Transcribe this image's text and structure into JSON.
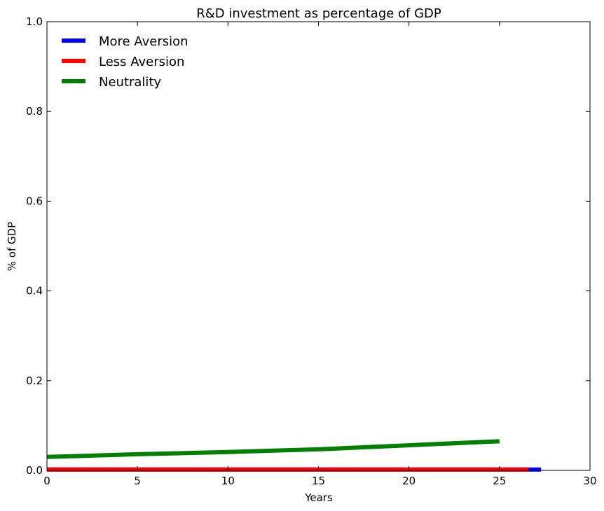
{
  "chart_data": {
    "type": "line",
    "title": "R&D investment as percentage of  GDP",
    "xlabel": "Years",
    "ylabel": "% of GDP",
    "xlim": [
      0,
      30
    ],
    "ylim": [
      0,
      1.0
    ],
    "x_ticks": [
      "0",
      "5",
      "10",
      "15",
      "20",
      "25",
      "30"
    ],
    "y_ticks": [
      "0.0",
      "0.2",
      "0.4",
      "0.6",
      "0.8",
      "1.0"
    ],
    "grid": false,
    "legend_position": "top-left",
    "series": [
      {
        "name": "More Aversion",
        "color": "#0000ff",
        "x": [
          0,
          5,
          10,
          15,
          20,
          25,
          27.3
        ],
        "y": [
          0.002,
          0.002,
          0.002,
          0.002,
          0.002,
          0.002,
          0.002
        ]
      },
      {
        "name": "Less Aversion",
        "color": "#ff0000",
        "x": [
          0,
          5,
          10,
          15,
          20,
          25,
          26.6
        ],
        "y": [
          0.002,
          0.002,
          0.002,
          0.002,
          0.002,
          0.002,
          0.002
        ]
      },
      {
        "name": "Neutrality",
        "color": "#008000",
        "x": [
          0,
          5,
          10,
          15,
          20,
          25
        ],
        "y": [
          0.03,
          0.036,
          0.041,
          0.047,
          0.056,
          0.065
        ]
      }
    ]
  }
}
